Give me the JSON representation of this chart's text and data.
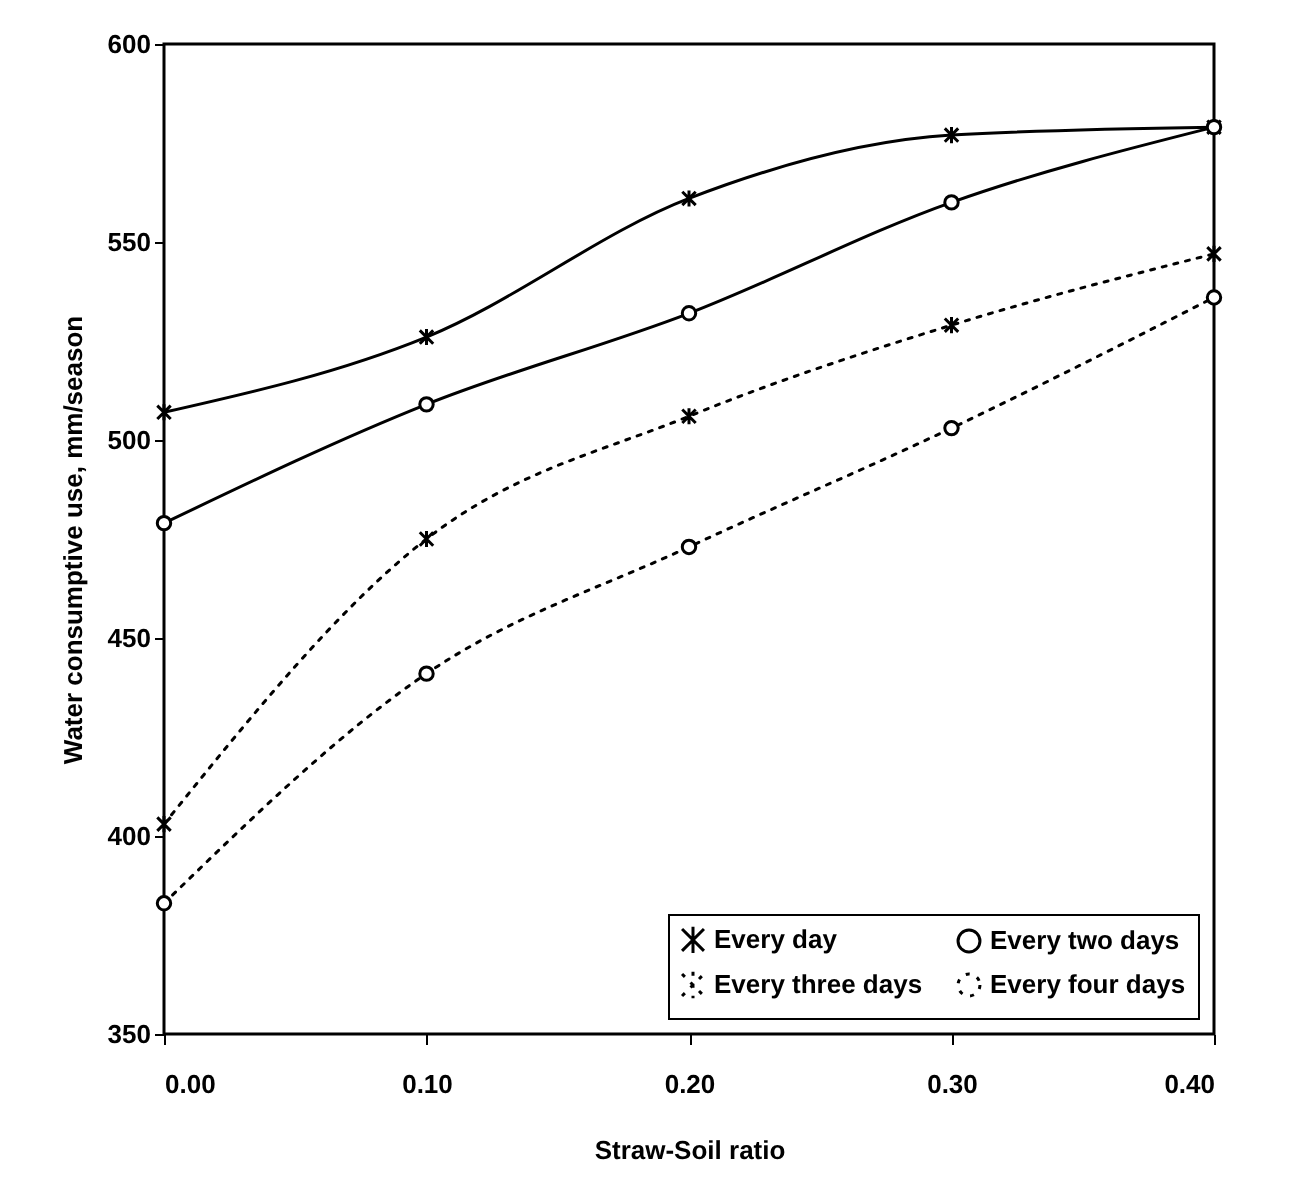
{
  "chart_data": {
    "type": "line",
    "xlabel": "Straw-Soil ratio",
    "ylabel": "Water consumptive use, mm/season",
    "x": [
      0,
      0.1,
      0.2,
      0.3,
      0.4
    ],
    "xlim": [
      0,
      0.4
    ],
    "xticks": [
      {
        "value": 0,
        "label": "0.00"
      },
      {
        "value": 0.1,
        "label": "0.10"
      },
      {
        "value": 0.2,
        "label": "0.20"
      },
      {
        "value": 0.3,
        "label": "0.30"
      },
      {
        "value": 0.4,
        "label": "0.40"
      }
    ],
    "ylim": [
      350,
      600
    ],
    "yticks": [
      350,
      400,
      450,
      500,
      550,
      600
    ],
    "legend": "bottom right",
    "series": [
      {
        "name": "Every day",
        "color": "#000000",
        "marker": "cross",
        "line_style": "solid",
        "values": [
          507,
          526,
          561,
          577,
          579
        ]
      },
      {
        "name": "Every two days",
        "color": "#000000",
        "marker": "circle",
        "line_style": "solid",
        "values": [
          479,
          509,
          532,
          560,
          579
        ]
      },
      {
        "name": "Every three days",
        "color": "#000000",
        "marker": "cross",
        "line_style": "dotted",
        "values": [
          403,
          475,
          506,
          529,
          547
        ]
      },
      {
        "name": "Every four days",
        "color": "#000000",
        "marker": "circle",
        "line_style": "dotted",
        "values": [
          383,
          441,
          473,
          503,
          536
        ]
      }
    ]
  }
}
